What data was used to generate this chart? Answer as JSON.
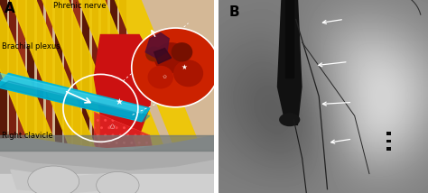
{
  "panel_a_label": "A",
  "panel_b_label": "B",
  "text_phrenic": "Phrenic nerve",
  "text_brachial": "Brachial plexus",
  "text_clavicle": "Right clavicle",
  "bg_color": "#ffffff",
  "label_fontsize": 9,
  "panel_label_fontsize": 11,
  "yellow_color": "#f0c800",
  "muscle_dark": "#6b2010",
  "muscle_mid": "#8a2820",
  "muscle_light": "#b03828",
  "red_artery": "#cc1111",
  "cyan_tube": "#00b8d9",
  "gray_bone_light": "#c0c0c0",
  "gray_bone_mid": "#a0a0a0",
  "gray_bone_dark": "#808080",
  "white": "#ffffff",
  "black": "#000000"
}
